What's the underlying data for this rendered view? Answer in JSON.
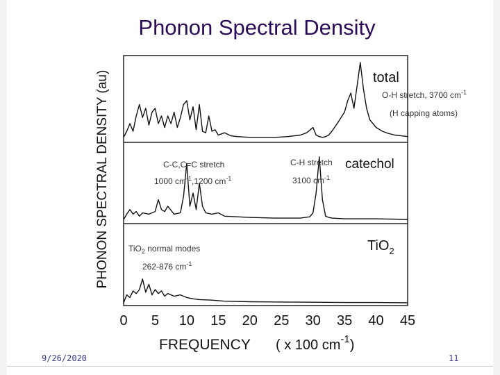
{
  "slide": {
    "title": "Phonon Spectral Density",
    "date": "9/26/2020",
    "page_number": "11"
  },
  "chart_data": {
    "type": "line",
    "ylabel": "PHONON SPECTRAL DENSITY (au)",
    "xlabel_main": "FREQUENCY",
    "xlabel_unit_open": "( x 100 cm",
    "xlabel_unit_exp": "-1",
    "xlabel_unit_close": ")",
    "xlim": [
      0,
      45
    ],
    "xticks": [
      0,
      5,
      10,
      15,
      20,
      25,
      30,
      35,
      40,
      45
    ],
    "grid": false,
    "panels": [
      {
        "name": "total",
        "label": "total",
        "annotations": [
          {
            "id": "oh-stretch",
            "base": "O-H stretch, 3700 cm",
            "sup": "-1"
          },
          {
            "id": "h-capping",
            "base": "(H capping atoms)",
            "sup": ""
          }
        ],
        "x": [
          0,
          0.5,
          1,
          1.5,
          2,
          2.5,
          3,
          3.5,
          4,
          4.5,
          5,
          5.5,
          6,
          6.5,
          7,
          7.5,
          8,
          8.5,
          9,
          9.5,
          10,
          10.5,
          11,
          11.5,
          12,
          12.5,
          13,
          13.5,
          14,
          14.5,
          15,
          16,
          17,
          18,
          20,
          22,
          24,
          26,
          28,
          29,
          30,
          30.5,
          31,
          31.5,
          32,
          32.5,
          33,
          34,
          35,
          35.5,
          36,
          36.5,
          37,
          37.5,
          38,
          38.5,
          39,
          40,
          41,
          42,
          43,
          44,
          45
        ],
        "y": [
          0.02,
          0.1,
          0.2,
          0.1,
          0.3,
          0.45,
          0.28,
          0.4,
          0.18,
          0.35,
          0.4,
          0.2,
          0.3,
          0.15,
          0.3,
          0.2,
          0.35,
          0.15,
          0.28,
          0.45,
          0.5,
          0.25,
          0.42,
          0.12,
          0.45,
          0.1,
          0.08,
          0.3,
          0.1,
          0.12,
          0.05,
          0.08,
          0.04,
          0.03,
          0.02,
          0.02,
          0.02,
          0.03,
          0.05,
          0.08,
          0.15,
          0.05,
          0.03,
          0.02,
          0.03,
          0.05,
          0.1,
          0.22,
          0.35,
          0.5,
          0.6,
          0.4,
          0.7,
          1.0,
          0.65,
          0.4,
          0.25,
          0.15,
          0.1,
          0.07,
          0.05,
          0.04,
          0.03
        ]
      },
      {
        "name": "catechol",
        "label": "catechol",
        "annotations": [
          {
            "id": "cc-stretch",
            "base": "C-C,C=C stretch",
            "sup": ""
          },
          {
            "id": "cc-freq",
            "base": "1000 cm",
            "sup": "-1",
            "mid": ",1200 cm",
            "sup2": "-1"
          },
          {
            "id": "ch-stretch",
            "base": "C-H stretch",
            "sup": ""
          },
          {
            "id": "ch-freq",
            "base": "3100 cm",
            "sup": "-1"
          }
        ],
        "x": [
          0,
          0.5,
          1,
          1.5,
          2,
          2.5,
          3,
          4,
          5,
          5.5,
          6,
          6.5,
          7,
          8,
          9,
          9.5,
          10,
          10.5,
          11,
          11.5,
          12,
          12.5,
          13,
          14,
          15,
          16,
          18,
          20,
          24,
          28,
          29.5,
          30,
          30.5,
          31,
          31.5,
          32,
          32.5,
          33,
          35,
          40,
          45
        ],
        "y": [
          0.0,
          0.08,
          0.15,
          0.08,
          0.12,
          0.05,
          0.1,
          0.08,
          0.12,
          0.3,
          0.15,
          0.12,
          0.2,
          0.08,
          0.1,
          0.35,
          0.85,
          0.2,
          0.4,
          0.15,
          0.55,
          0.2,
          0.1,
          0.08,
          0.1,
          0.05,
          0.04,
          0.03,
          0.02,
          0.02,
          0.04,
          0.1,
          0.4,
          0.95,
          0.3,
          0.05,
          0.03,
          0.02,
          0.01,
          0.01,
          0.0
        ]
      },
      {
        "name": "tio2",
        "label_base": "TiO",
        "label_sub": "2",
        "annotations": [
          {
            "id": "tio2-modes",
            "base": "TiO",
            "sub": "2",
            "rest": " normal modes"
          },
          {
            "id": "tio2-range",
            "base": "262-876 cm",
            "sup": "-1"
          }
        ],
        "x": [
          0,
          0.5,
          1,
          1.5,
          2,
          2.5,
          3,
          3.5,
          4,
          4.5,
          5,
          5.5,
          6,
          6.5,
          7,
          8,
          9,
          10,
          11,
          12,
          14,
          16,
          20,
          25,
          30,
          35,
          40,
          45
        ],
        "y": [
          0.0,
          0.3,
          0.2,
          0.45,
          0.35,
          0.5,
          0.9,
          0.4,
          0.7,
          0.3,
          0.5,
          0.35,
          0.45,
          0.25,
          0.35,
          0.25,
          0.3,
          0.2,
          0.15,
          0.12,
          0.1,
          0.06,
          0.04,
          0.03,
          0.02,
          0.01,
          0.01,
          0.0
        ]
      }
    ]
  }
}
